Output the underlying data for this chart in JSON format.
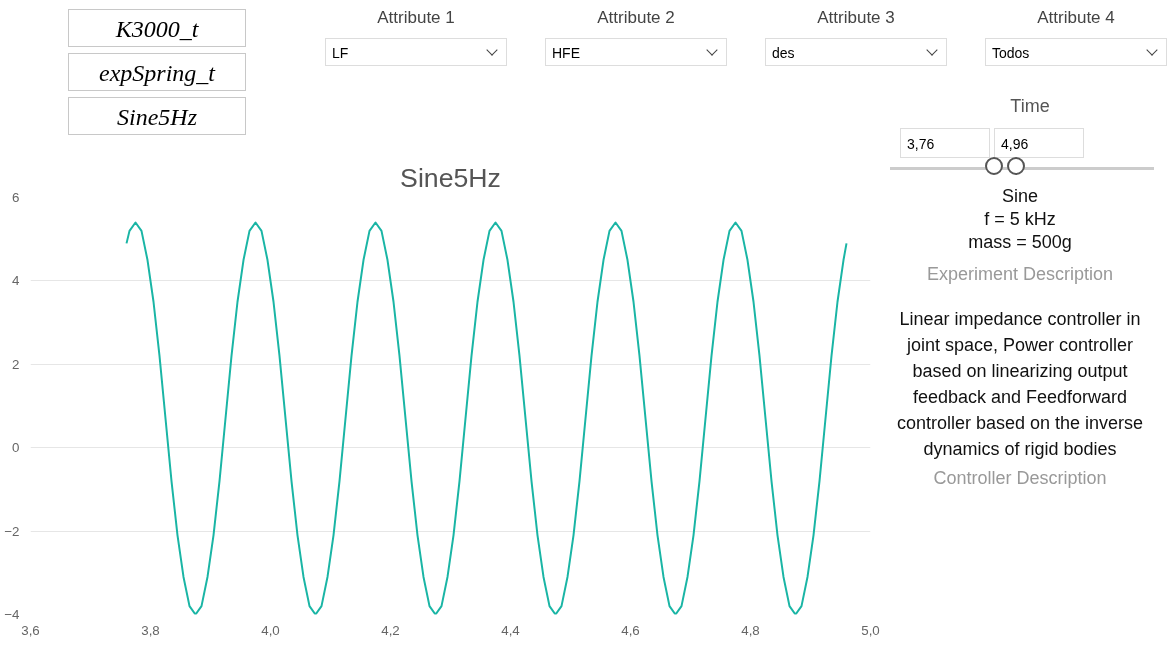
{
  "chart_data": {
    "type": "line",
    "title": "Sine5Hz",
    "x": [
      3.76,
      3.765,
      3.775,
      3.785,
      3.795,
      3.805,
      3.815,
      3.825,
      3.835,
      3.845,
      3.855,
      3.865,
      3.875,
      3.885,
      3.895,
      3.905,
      3.915,
      3.925,
      3.935,
      3.945,
      3.955,
      3.965,
      3.975,
      3.985,
      3.995,
      4.005,
      4.015,
      4.025,
      4.035,
      4.045,
      4.055,
      4.065,
      4.075,
      4.085,
      4.095,
      4.105,
      4.115,
      4.125,
      4.135,
      4.145,
      4.155,
      4.165,
      4.175,
      4.185,
      4.195,
      4.205,
      4.215,
      4.225,
      4.235,
      4.245,
      4.255,
      4.265,
      4.275,
      4.285,
      4.295,
      4.305,
      4.315,
      4.325,
      4.335,
      4.345,
      4.355,
      4.365,
      4.375,
      4.385,
      4.395,
      4.405,
      4.415,
      4.425,
      4.435,
      4.445,
      4.455,
      4.465,
      4.475,
      4.485,
      4.495,
      4.505,
      4.515,
      4.525,
      4.535,
      4.545,
      4.555,
      4.565,
      4.575,
      4.585,
      4.595,
      4.605,
      4.615,
      4.625,
      4.635,
      4.645,
      4.655,
      4.665,
      4.675,
      4.685,
      4.695,
      4.705,
      4.715,
      4.725,
      4.735,
      4.745,
      4.755,
      4.765,
      4.775,
      4.785,
      4.795,
      4.805,
      4.815,
      4.825,
      4.835,
      4.845,
      4.855,
      4.865,
      4.875,
      4.885,
      4.895,
      4.905,
      4.915,
      4.925,
      4.935,
      4.945,
      4.955,
      4.96
    ],
    "series": [
      {
        "color": "#1ab5a5",
        "values": [
          4.9,
          5.2,
          5.4,
          5.2,
          4.5,
          3.5,
          2.2,
          0.7,
          -0.8,
          -2.1,
          -3.1,
          -3.8,
          -4.0,
          -3.8,
          -3.1,
          -2.1,
          -0.8,
          0.7,
          2.2,
          3.5,
          4.5,
          5.2,
          5.4,
          5.2,
          4.5,
          3.5,
          2.2,
          0.7,
          -0.8,
          -2.1,
          -3.1,
          -3.8,
          -4.0,
          -3.8,
          -3.1,
          -2.1,
          -0.8,
          0.7,
          2.2,
          3.5,
          4.5,
          5.2,
          5.4,
          5.2,
          4.5,
          3.5,
          2.2,
          0.7,
          -0.8,
          -2.1,
          -3.1,
          -3.8,
          -4.0,
          -3.8,
          -3.1,
          -2.1,
          -0.8,
          0.7,
          2.2,
          3.5,
          4.5,
          5.2,
          5.4,
          5.2,
          4.5,
          3.5,
          2.2,
          0.7,
          -0.8,
          -2.1,
          -3.1,
          -3.8,
          -4.0,
          -3.8,
          -3.1,
          -2.1,
          -0.8,
          0.7,
          2.2,
          3.5,
          4.5,
          5.2,
          5.4,
          5.2,
          4.5,
          3.5,
          2.2,
          0.7,
          -0.8,
          -2.1,
          -3.1,
          -3.8,
          -4.0,
          -3.8,
          -3.1,
          -2.1,
          -0.8,
          0.7,
          2.2,
          3.5,
          4.5,
          5.2,
          5.4,
          5.2,
          4.5,
          3.5,
          2.2,
          0.7,
          -0.8,
          -2.1,
          -3.1,
          -3.8,
          -4.0,
          -3.8,
          -3.1,
          -2.1,
          -0.8,
          0.7,
          2.2,
          3.5,
          4.5,
          4.9
        ]
      }
    ],
    "xlim": [
      3.6,
      5.0
    ],
    "ylim": [
      -4,
      6
    ],
    "xticks": [
      {
        "value": 3.6,
        "label": "3,6"
      },
      {
        "value": 3.8,
        "label": "3,8"
      },
      {
        "value": 4.0,
        "label": "4,0"
      },
      {
        "value": 4.2,
        "label": "4,2"
      },
      {
        "value": 4.4,
        "label": "4,4"
      },
      {
        "value": 4.6,
        "label": "4,6"
      },
      {
        "value": 4.8,
        "label": "4,8"
      },
      {
        "value": 5.0,
        "label": "5,0"
      }
    ],
    "yticks": [
      -4,
      -2,
      0,
      2,
      4,
      6
    ],
    "grid": "y",
    "annotations": [
      "K3000_t",
      "expSpring_t",
      "Sine5Hz",
      "Attribute 1",
      "LF",
      "Attribute 2",
      "HFE",
      "Attribute 3",
      "des",
      "Attribute 4",
      "Todos",
      "Time",
      "3,76",
      "4,96",
      "Sine",
      "f = 5 kHz",
      "mass = 500g",
      "Experiment Description",
      "Linear impedance controller in joint space, Power controller based on linearizing output feedback and Feedforward controller based on the inverse dynamics of rigid bodies",
      "Controller Description"
    ]
  }
}
